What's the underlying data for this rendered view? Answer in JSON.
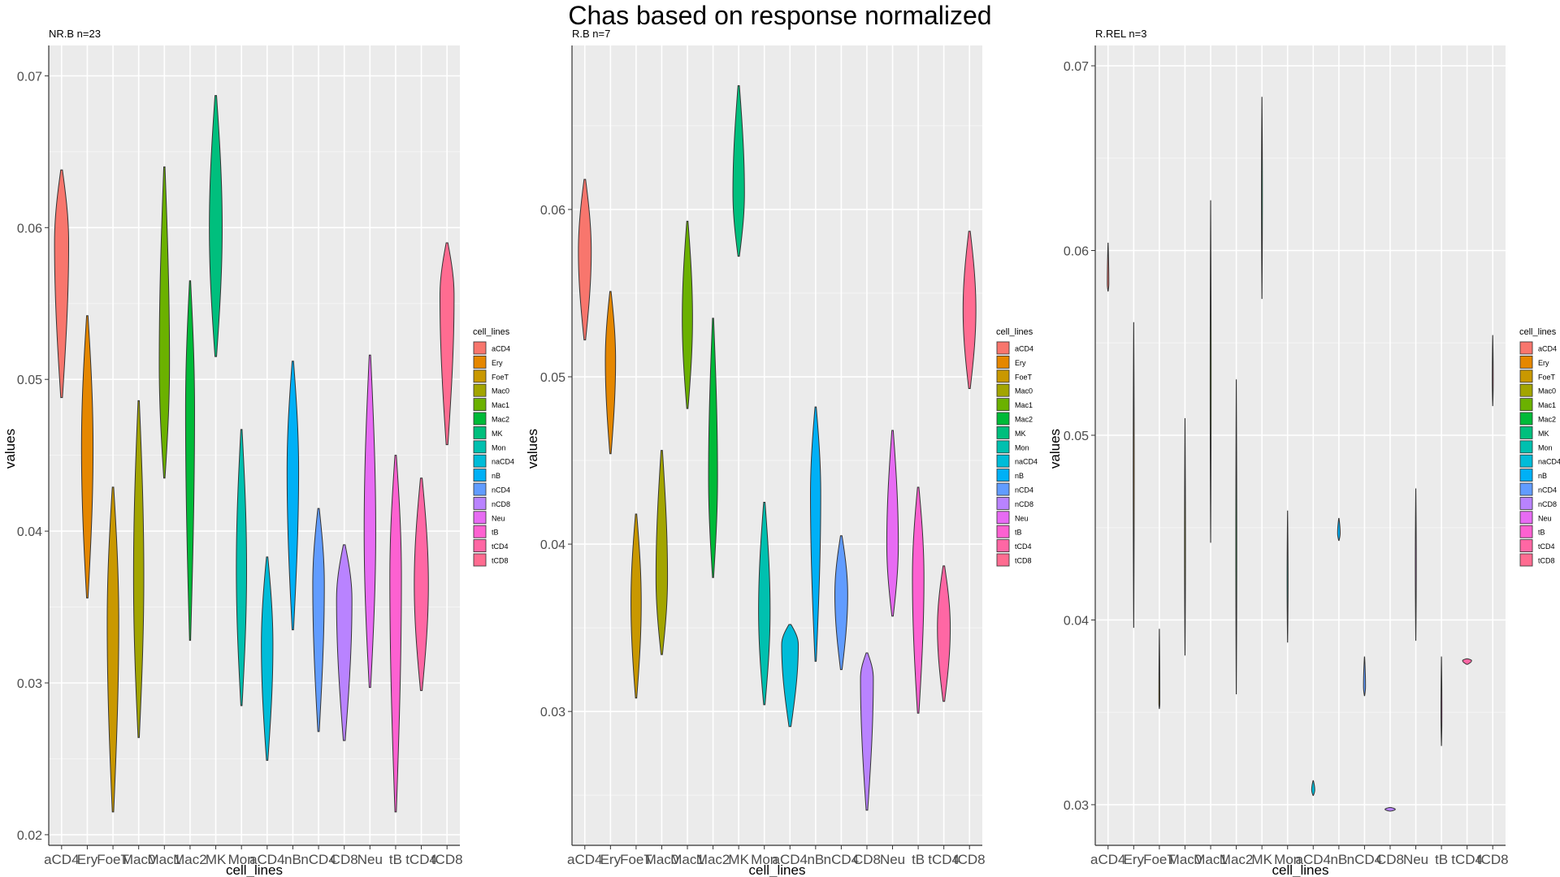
{
  "title": "Chas based on response normalized",
  "colors": {
    "aCD4": "#F8766D",
    "Ery": "#E58700",
    "FoeT": "#C99800",
    "Mac0": "#A3A500",
    "Mac1": "#6BB100",
    "Mac2": "#00BA38",
    "MK": "#00BF7D",
    "Mon": "#00C0AF",
    "naCD4": "#00BCD8",
    "nB": "#00B0F6",
    "nCD4": "#619CFF",
    "nCD8": "#B983FF",
    "Neu": "#E76BF3",
    "tB": "#FD61D1",
    "tCD4": "#FF67A4",
    "tCD8": "#FF6C91"
  },
  "chart_data": [
    {
      "type": "violin",
      "panel_title": "NR.B n=23",
      "xlabel": "cell_lines",
      "ylabel": "values",
      "legend_title": "cell_lines",
      "legend_items": [
        "aCD4",
        "Ery",
        "FoeT",
        "Mac0",
        "Mac1",
        "Mac2",
        "MK",
        "Mon",
        "naCD4",
        "nB",
        "nCD4",
        "nCD8",
        "Neu",
        "tB",
        "tCD4",
        "tCD8"
      ],
      "tick_labels": [
        "aCD4",
        "Ery",
        "FoeT",
        "Mac0",
        "Mac1",
        "Mac2",
        "MK",
        "Mon",
        "aCD4",
        "nB",
        "nCD4",
        "CD8",
        "Neu",
        "tB",
        "tCD4",
        "tCD8"
      ],
      "yticks": [
        0.02,
        0.03,
        0.04,
        0.05,
        0.06,
        0.07
      ],
      "ylim": [
        0.0193,
        0.072
      ],
      "violins": [
        {
          "name": "aCD4",
          "min": 0.0488,
          "max": 0.0638,
          "peak": 0.059,
          "wmax": 0.55
        },
        {
          "name": "Ery",
          "min": 0.0356,
          "max": 0.0542,
          "peak": 0.0455,
          "wmax": 0.45
        },
        {
          "name": "FoeT",
          "min": 0.0215,
          "max": 0.0429,
          "peak": 0.034,
          "wmax": 0.45
        },
        {
          "name": "Mac0",
          "min": 0.0264,
          "max": 0.0486,
          "peak": 0.037,
          "wmax": 0.4
        },
        {
          "name": "Mac1",
          "min": 0.0435,
          "max": 0.064,
          "peak": 0.051,
          "wmax": 0.4
        },
        {
          "name": "Mac2",
          "min": 0.0328,
          "max": 0.0565,
          "peak": 0.048,
          "wmax": 0.35
        },
        {
          "name": "MK",
          "min": 0.0515,
          "max": 0.0687,
          "peak": 0.06,
          "wmax": 0.5
        },
        {
          "name": "Mon",
          "min": 0.0285,
          "max": 0.0467,
          "peak": 0.0375,
          "wmax": 0.4
        },
        {
          "name": "naCD4",
          "min": 0.0249,
          "max": 0.0383,
          "peak": 0.0325,
          "wmax": 0.45
        },
        {
          "name": "nB",
          "min": 0.0335,
          "max": 0.0512,
          "peak": 0.044,
          "wmax": 0.45
        },
        {
          "name": "nCD4",
          "min": 0.0268,
          "max": 0.0415,
          "peak": 0.0365,
          "wmax": 0.45
        },
        {
          "name": "nCD8",
          "min": 0.0262,
          "max": 0.0391,
          "peak": 0.0355,
          "wmax": 0.6
        },
        {
          "name": "Neu",
          "min": 0.0297,
          "max": 0.0516,
          "peak": 0.04,
          "wmax": 0.45
        },
        {
          "name": "tB",
          "min": 0.0215,
          "max": 0.045,
          "peak": 0.037,
          "wmax": 0.45
        },
        {
          "name": "tCD4",
          "min": 0.0295,
          "max": 0.0435,
          "peak": 0.0365,
          "wmax": 0.55
        },
        {
          "name": "tCD8",
          "min": 0.0457,
          "max": 0.059,
          "peak": 0.0555,
          "wmax": 0.55
        }
      ]
    },
    {
      "type": "violin",
      "panel_title": "R.B n=7",
      "xlabel": "cell_lines",
      "ylabel": "values",
      "legend_title": "cell_lines",
      "legend_items": [
        "aCD4",
        "Ery",
        "FoeT",
        "Mac0",
        "Mac1",
        "Mac2",
        "MK",
        "Mon",
        "naCD4",
        "nB",
        "nCD4",
        "nCD8",
        "Neu",
        "tB",
        "tCD4",
        "tCD8"
      ],
      "tick_labels": [
        "aCD4",
        "Ery",
        "FoeT",
        "Mac0",
        "Mac1",
        "Mac2",
        "MK",
        "Mon",
        "aCD4",
        "nB",
        "nCD4",
        "CD8",
        "Neu",
        "tB",
        "tCD4",
        "tCD8"
      ],
      "yticks": [
        0.03,
        0.04,
        0.05,
        0.06
      ],
      "ylim": [
        0.022,
        0.0698
      ],
      "violins": [
        {
          "name": "aCD4",
          "min": 0.0522,
          "max": 0.0618,
          "peak": 0.0575,
          "wmax": 0.5
        },
        {
          "name": "Ery",
          "min": 0.0454,
          "max": 0.0551,
          "peak": 0.051,
          "wmax": 0.4
        },
        {
          "name": "FoeT",
          "min": 0.0308,
          "max": 0.0418,
          "peak": 0.0365,
          "wmax": 0.4
        },
        {
          "name": "Mac0",
          "min": 0.0334,
          "max": 0.0456,
          "peak": 0.038,
          "wmax": 0.45
        },
        {
          "name": "Mac1",
          "min": 0.0481,
          "max": 0.0593,
          "peak": 0.0535,
          "wmax": 0.4
        },
        {
          "name": "Mac2",
          "min": 0.038,
          "max": 0.0535,
          "peak": 0.044,
          "wmax": 0.35
        },
        {
          "name": "MK",
          "min": 0.0572,
          "max": 0.0674,
          "peak": 0.061,
          "wmax": 0.45
        },
        {
          "name": "Mon",
          "min": 0.0304,
          "max": 0.0425,
          "peak": 0.036,
          "wmax": 0.45
        },
        {
          "name": "naCD4",
          "min": 0.0291,
          "max": 0.0352,
          "peak": 0.034,
          "wmax": 0.65
        },
        {
          "name": "nB",
          "min": 0.033,
          "max": 0.0482,
          "peak": 0.043,
          "wmax": 0.4
        },
        {
          "name": "nCD4",
          "min": 0.0325,
          "max": 0.0405,
          "peak": 0.037,
          "wmax": 0.5
        },
        {
          "name": "nCD8",
          "min": 0.0241,
          "max": 0.0335,
          "peak": 0.032,
          "wmax": 0.5
        },
        {
          "name": "Neu",
          "min": 0.0357,
          "max": 0.0468,
          "peak": 0.04,
          "wmax": 0.45
        },
        {
          "name": "tB",
          "min": 0.0299,
          "max": 0.0434,
          "peak": 0.038,
          "wmax": 0.45
        },
        {
          "name": "tCD4",
          "min": 0.0306,
          "max": 0.0387,
          "peak": 0.035,
          "wmax": 0.5
        },
        {
          "name": "tCD8",
          "min": 0.0493,
          "max": 0.0587,
          "peak": 0.054,
          "wmax": 0.5
        }
      ]
    },
    {
      "type": "violin",
      "panel_title": "R.REL n=3",
      "xlabel": "cell_lines",
      "ylabel": "values",
      "legend_title": "cell_lines",
      "legend_items": [
        "aCD4",
        "Ery",
        "FoeT",
        "Mac0",
        "Mac1",
        "Mac2",
        "MK",
        "Mon",
        "naCD4",
        "nB",
        "nCD4",
        "nCD8",
        "Neu",
        "tB",
        "tCD4",
        "tCD8"
      ],
      "tick_labels": [
        "aCD4",
        "Ery",
        "FoeT",
        "Mac0",
        "Mac1",
        "Mac2",
        "MK",
        "Mon",
        "aCD4",
        "nB",
        "nCD4",
        "CD8",
        "Neu",
        "tB",
        "tCD4",
        "tCD8"
      ],
      "yticks": [
        0.03,
        0.04,
        0.05,
        0.06,
        0.07
      ],
      "ylim": [
        0.0278,
        0.0711
      ],
      "violins": [
        {
          "name": "aCD4",
          "min": 0.0578,
          "max": 0.0604,
          "peak": 0.0582,
          "wmax": 0.06
        },
        {
          "name": "Ery",
          "min": 0.0396,
          "max": 0.0561,
          "peak": 0.048,
          "wmax": 0.01
        },
        {
          "name": "FoeT",
          "min": 0.0352,
          "max": 0.0395,
          "peak": 0.0355,
          "wmax": 0.03
        },
        {
          "name": "Mac0",
          "min": 0.0381,
          "max": 0.0509,
          "peak": 0.044,
          "wmax": 0.01
        },
        {
          "name": "Mac1",
          "min": 0.0442,
          "max": 0.0627,
          "peak": 0.053,
          "wmax": 0.01
        },
        {
          "name": "Mac2",
          "min": 0.036,
          "max": 0.053,
          "peak": 0.044,
          "wmax": 0.01
        },
        {
          "name": "MK",
          "min": 0.0574,
          "max": 0.0683,
          "peak": 0.063,
          "wmax": 0.01
        },
        {
          "name": "Mon",
          "min": 0.0388,
          "max": 0.0459,
          "peak": 0.042,
          "wmax": 0.01
        },
        {
          "name": "naCD4",
          "min": 0.0305,
          "max": 0.0313,
          "peak": 0.0308,
          "wmax": 0.12
        },
        {
          "name": "nB",
          "min": 0.0443,
          "max": 0.0455,
          "peak": 0.0447,
          "wmax": 0.1
        },
        {
          "name": "nCD4",
          "min": 0.0359,
          "max": 0.038,
          "peak": 0.0364,
          "wmax": 0.08
        },
        {
          "name": "nCD8",
          "min": 0.02965,
          "max": 0.02985,
          "peak": 0.02975,
          "wmax": 0.4
        },
        {
          "name": "Neu",
          "min": 0.0389,
          "max": 0.0471,
          "peak": 0.043,
          "wmax": 0.01
        },
        {
          "name": "tB",
          "min": 0.0332,
          "max": 0.038,
          "peak": 0.035,
          "wmax": 0.01
        },
        {
          "name": "tCD4",
          "min": 0.0376,
          "max": 0.0379,
          "peak": 0.0378,
          "wmax": 0.35
        },
        {
          "name": "tCD8",
          "min": 0.0516,
          "max": 0.0554,
          "peak": 0.053,
          "wmax": 0.02
        }
      ]
    }
  ]
}
